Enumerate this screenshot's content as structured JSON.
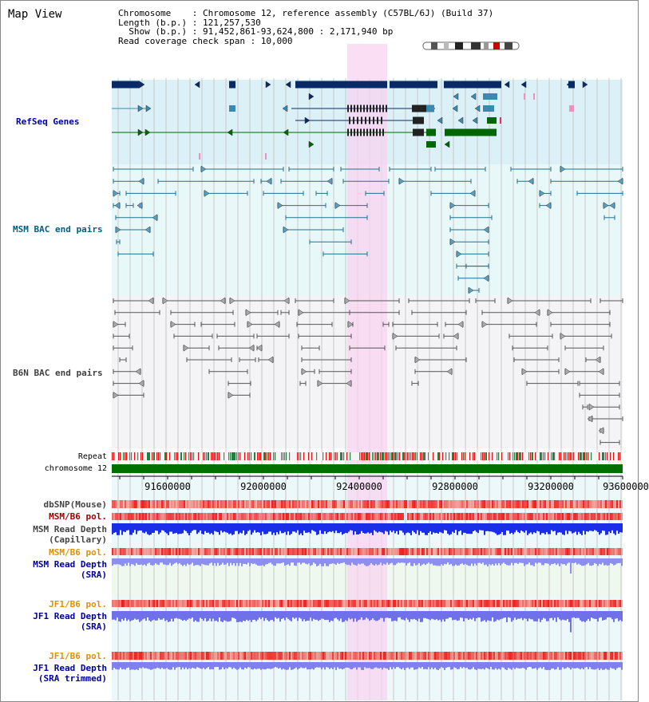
{
  "title": "Map View",
  "info": {
    "chromosome": "Chromosome    : Chromosome 12, reference assembly (C57BL/6J) (Build 37)",
    "length": "Length (b.p.) : 121,257,530",
    "show": "  Show (b.p.) : 91,452,861-93,624,800 : 2,171,940 bp",
    "coverage": "Read coverage check span : 10,000"
  },
  "tracks": {
    "refseq": "RefSeq Genes",
    "msm_bac": "MSM BAC end pairs",
    "b6n_bac": "B6N BAC end pairs",
    "repeat": "Repeat",
    "chrom": "chromosome 12",
    "dbsnp": "dbSNP(Mouse)",
    "msm_b6_pol_1": "MSM/B6 pol.",
    "msm_depth_cap": "MSM Read Depth\n(Capillary)",
    "msm_b6_pol_2": "MSM/B6 pol.",
    "msm_depth_sra": "MSM Read Depth\n(SRA)",
    "jf1_b6_pol_1": "JF1/B6 pol.",
    "jf1_depth_sra": "JF1 Read Depth\n(SRA)",
    "jf1_b6_pol_2": "JF1/B6 pol.",
    "jf1_depth_trim": "JF1 Read Depth\n(SRA trimmed)"
  },
  "axis": {
    "ticks": [
      "91600000",
      "92000000",
      "92400000",
      "92800000",
      "93200000",
      "93600000"
    ]
  },
  "colors": {
    "refseq_bg": "#dcf0f8",
    "msm_bg": "#e8f8f8",
    "b6n_bg": "#f4f4f6",
    "highlight": "#f8d4f0",
    "chrom": "#007000",
    "label_blue": "#0000a0",
    "label_teal": "#006080",
    "label_gray": "#404040",
    "label_orange": "#e09000",
    "label_red": "#a00000"
  }
}
